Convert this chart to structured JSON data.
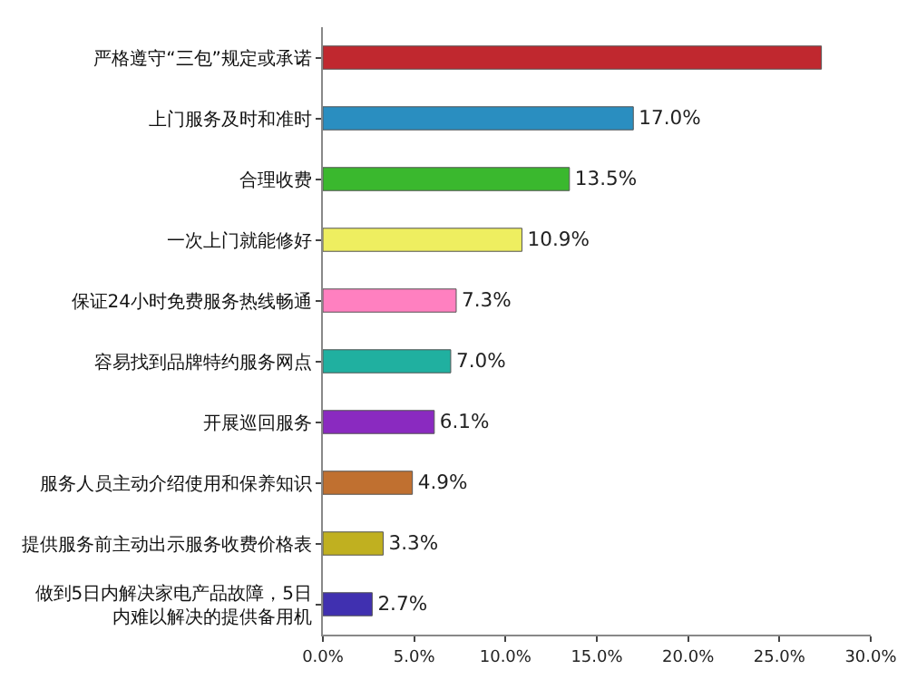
{
  "chart_data": {
    "type": "bar",
    "orientation": "horizontal",
    "categories": [
      "严格遵守“三包”规定或承诺",
      "上门服务及时和准时",
      "合理收费",
      "一次上门就能修好",
      "保证24小时免费服务热线畅通",
      "容易找到品牌特约服务网点",
      "开展巡回服务",
      "服务人员主动介绍使用和保养知识",
      "提供服务前主动出示服务收费价格表",
      "做到5日内解决家电产品故障，5日内难以解决的提供备用机"
    ],
    "values": [
      27.3,
      17.0,
      13.5,
      10.9,
      7.3,
      7.0,
      6.1,
      4.9,
      3.3,
      2.7
    ],
    "value_labels": [
      null,
      "17.0%",
      "13.5%",
      "10.9%",
      "7.3%",
      "7.0%",
      "6.1%",
      "4.9%",
      "3.3%",
      "2.7%"
    ],
    "colors": [
      "#c0282f",
      "#2a8ec0",
      "#3ab82e",
      "#eeee60",
      "#ff80c0",
      "#20b0a0",
      "#8a2ac0",
      "#c07030",
      "#c0b020",
      "#4030b0"
    ],
    "xlim": [
      0,
      30
    ],
    "xticks": [
      {
        "value": 0,
        "label": "0.0%"
      },
      {
        "value": 5,
        "label": "5.0%"
      },
      {
        "value": 10,
        "label": "10.0%"
      },
      {
        "value": 15,
        "label": "15.0%"
      },
      {
        "value": 20,
        "label": "20.0%"
      },
      {
        "value": 25,
        "label": "25.0%"
      },
      {
        "value": 30,
        "label": "30.0%"
      }
    ],
    "grid": false
  }
}
